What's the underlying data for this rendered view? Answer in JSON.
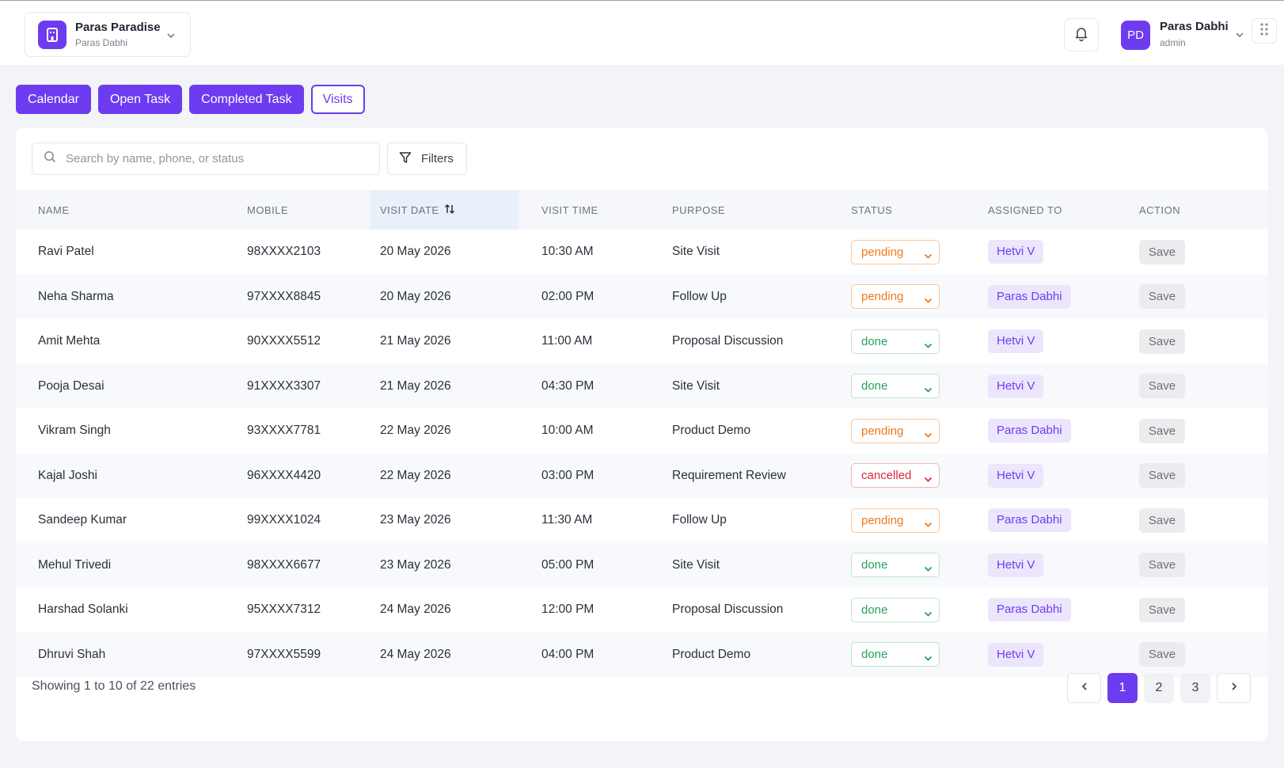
{
  "header": {
    "project_name": "Paras Paradise",
    "project_owner": "Paras Dabhi",
    "user_initials": "PD",
    "user_name": "Paras Dabhi",
    "user_role": "admin"
  },
  "tabs": [
    {
      "label": "Calendar"
    },
    {
      "label": "Open Task"
    },
    {
      "label": "Completed Task"
    },
    {
      "label": "Visits"
    }
  ],
  "search": {
    "placeholder": "Search by name, phone, or status"
  },
  "filters_label": "Filters",
  "table": {
    "columns": {
      "name": "NAME",
      "mobile": "MOBILE",
      "visit_date": "VISIT DATE",
      "visit_time": "VISIT TIME",
      "purpose": "PURPOSE",
      "status": "STATUS",
      "assigned_to": "ASSIGNED TO",
      "action": "ACTION"
    },
    "save_label": "Save",
    "rows": [
      {
        "name": "Ravi Patel",
        "mobile": "98XXXX2103",
        "date": "20 May 2026",
        "time": "10:30 AM",
        "purpose": "Site Visit",
        "status": "pending",
        "assigned": "Hetvi V"
      },
      {
        "name": "Neha Sharma",
        "mobile": "97XXXX8845",
        "date": "20 May 2026",
        "time": "02:00 PM",
        "purpose": "Follow Up",
        "status": "pending",
        "assigned": "Paras Dabhi"
      },
      {
        "name": "Amit Mehta",
        "mobile": "90XXXX5512",
        "date": "21 May 2026",
        "time": "11:00 AM",
        "purpose": "Proposal Discussion",
        "status": "done",
        "assigned": "Hetvi V"
      },
      {
        "name": "Pooja Desai",
        "mobile": "91XXXX3307",
        "date": "21 May 2026",
        "time": "04:30 PM",
        "purpose": "Site Visit",
        "status": "done",
        "assigned": "Hetvi V"
      },
      {
        "name": "Vikram Singh",
        "mobile": "93XXXX7781",
        "date": "22 May 2026",
        "time": "10:00 AM",
        "purpose": "Product Demo",
        "status": "pending",
        "assigned": "Paras Dabhi"
      },
      {
        "name": "Kajal Joshi",
        "mobile": "96XXXX4420",
        "date": "22 May 2026",
        "time": "03:00 PM",
        "purpose": "Requirement Review",
        "status": "cancelled",
        "assigned": "Hetvi V"
      },
      {
        "name": "Sandeep Kumar",
        "mobile": "99XXXX1024",
        "date": "23 May 2026",
        "time": "11:30 AM",
        "purpose": "Follow Up",
        "status": "pending",
        "assigned": "Paras Dabhi"
      },
      {
        "name": "Mehul Trivedi",
        "mobile": "98XXXX6677",
        "date": "23 May 2026",
        "time": "05:00 PM",
        "purpose": "Site Visit",
        "status": "done",
        "assigned": "Hetvi V"
      },
      {
        "name": "Harshad Solanki",
        "mobile": "95XXXX7312",
        "date": "24 May 2026",
        "time": "12:00 PM",
        "purpose": "Proposal Discussion",
        "status": "done",
        "assigned": "Paras Dabhi"
      },
      {
        "name": "Dhruvi Shah",
        "mobile": "97XXXX5599",
        "date": "24 May 2026",
        "time": "04:00 PM",
        "purpose": "Product Demo",
        "status": "done",
        "assigned": "Hetvi V"
      }
    ]
  },
  "footer": {
    "showing": "Showing 1 to 10 of 22 entries"
  },
  "pagination": {
    "pages": [
      "1",
      "2",
      "3"
    ],
    "current": "1"
  },
  "colors": {
    "accent": "#6d3cf0",
    "pending": "#f07a1c",
    "done": "#23a45a",
    "cancelled": "#e0283a"
  }
}
